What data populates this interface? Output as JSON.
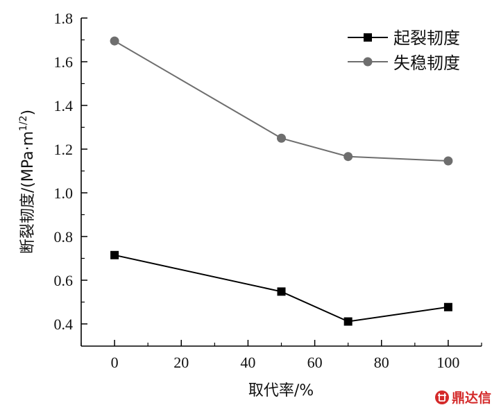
{
  "chart_data": {
    "type": "line",
    "x": [
      0,
      50,
      70,
      100
    ],
    "series": [
      {
        "name": "起裂韧度",
        "values": [
          0.715,
          0.548,
          0.411,
          0.477
        ],
        "color": "#000000",
        "marker": "square"
      },
      {
        "name": "失稳韧度",
        "values": [
          1.695,
          1.25,
          1.166,
          1.146
        ],
        "color": "#6e6e6e",
        "marker": "circle"
      }
    ],
    "xlabel": "取代率/%",
    "ylabel": "断裂韧度/(MPa·m",
    "ylabel_sup": "1/2",
    "ylabel_close": ")",
    "xlim": [
      -10,
      110
    ],
    "ylim": [
      0.33,
      1.8
    ],
    "xticks": [
      "0",
      "20",
      "40",
      "60",
      "80",
      "100"
    ],
    "yticks": [
      "0.4",
      "0.6",
      "0.8",
      "1.0",
      "1.2",
      "1.4",
      "1.6",
      "1.8"
    ],
    "grid": false,
    "legend_position": "top-right"
  },
  "watermark": {
    "text": "鼎达信",
    "icon": "seal-icon",
    "color": "#d42a2a"
  }
}
